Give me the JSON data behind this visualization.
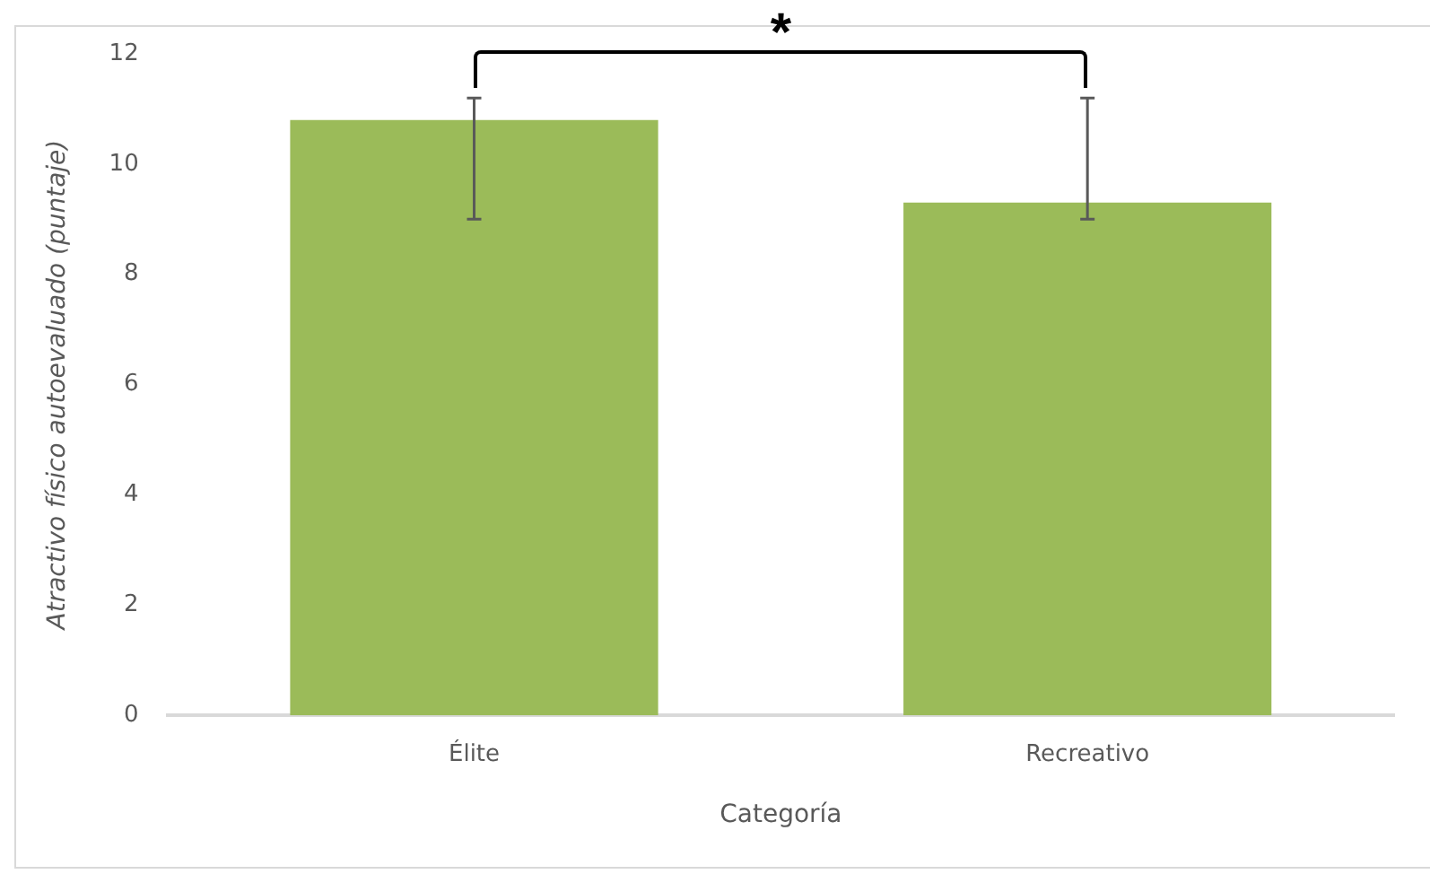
{
  "chart_data": {
    "type": "bar",
    "xlabel": "Categoría",
    "ylabel": "Atractivo físico autoevaluado (puntaje)",
    "categories": [
      "Élite",
      "Recreativo"
    ],
    "values": [
      10.8,
      9.3
    ],
    "color": "#9bbb59",
    "errors": [
      [
        9.0,
        11.2
      ],
      [
        9.0,
        11.2
      ]
    ],
    "ylim": [
      0,
      12
    ],
    "yticks": [
      0,
      2,
      4,
      6,
      8,
      10,
      12
    ],
    "grid": false,
    "annotations": [
      "*"
    ]
  }
}
